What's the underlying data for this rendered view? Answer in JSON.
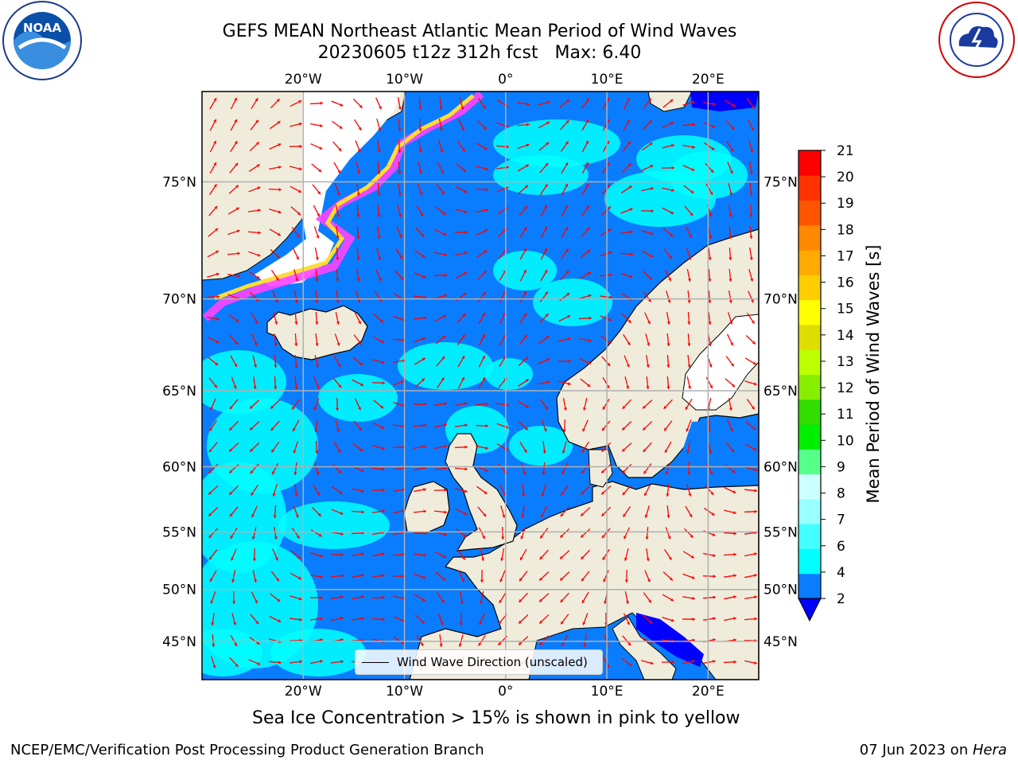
{
  "title": {
    "line1": "GEFS MEAN Northeast Atlantic Mean Period of Wind Waves",
    "line2": "20230605 t12z 312h fcst   Max: 6.40"
  },
  "map": {
    "lon_range": [
      -30,
      25
    ],
    "lat_range": [
      41,
      78
    ],
    "lon_ticks": [
      {
        "value": -20,
        "label": "20°W"
      },
      {
        "value": -10,
        "label": "10°W"
      },
      {
        "value": 0,
        "label": "0°"
      },
      {
        "value": 10,
        "label": "10°E"
      },
      {
        "value": 20,
        "label": "20°E"
      }
    ],
    "lat_ticks": [
      {
        "value": 75,
        "label": "75°N"
      },
      {
        "value": 70,
        "label": "70°N"
      },
      {
        "value": 65,
        "label": "65°N"
      },
      {
        "value": 60,
        "label": "60°N"
      },
      {
        "value": 55,
        "label": "55°N"
      },
      {
        "value": 50,
        "label": "50°N"
      },
      {
        "value": 45,
        "label": "45°N"
      }
    ],
    "colors": {
      "ocean_base": "#0a7dff",
      "ocean_cyan": "#00ffff",
      "ocean_light": "#66ffff",
      "land": "#efecdc",
      "ice_pink": "#ff44ff",
      "ice_yellow": "#ffdd33",
      "arrow": "#ff0000",
      "grid": "#b0b0b0"
    }
  },
  "legend": {
    "label": "Wind Wave Direction (unscaled)"
  },
  "colorbar": {
    "title": "Mean Period of Wind Waves [s]",
    "ticks": [
      "2",
      "4",
      "6",
      "7",
      "8",
      "9",
      "10",
      "11",
      "12",
      "13",
      "14",
      "15",
      "16",
      "17",
      "18",
      "19",
      "20",
      "21"
    ],
    "colors": [
      "#0a7dff",
      "#00ffff",
      "#44ffff",
      "#99ffff",
      "#ccffff",
      "#55ff88",
      "#00ee00",
      "#33dd00",
      "#88ee00",
      "#bbff00",
      "#dddd00",
      "#ffff00",
      "#ffcc00",
      "#ffaa00",
      "#ff8800",
      "#ff5500",
      "#ff3300",
      "#ff0000"
    ],
    "under_color": "#0000ff"
  },
  "footer": {
    "subtitle": "Sea Ice Concentration > 15% is shown in pink to yellow",
    "credit": "NCEP/EMC/Verification Post Processing Product Generation Branch",
    "date": "07 Jun 2023 on ",
    "machine": "Hera"
  }
}
